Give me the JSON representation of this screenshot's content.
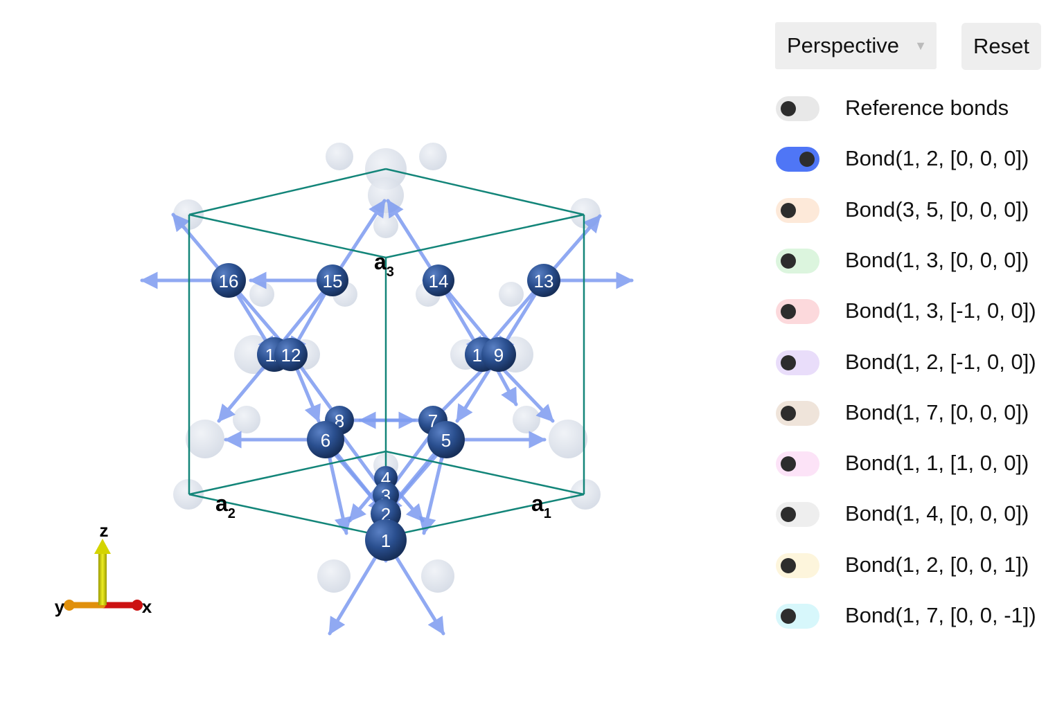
{
  "viewer": {
    "projection_options": [
      "Perspective"
    ],
    "projection_selected": "Perspective",
    "dropdown_icon": "triangle-down-icon",
    "reset_label": "Reset",
    "lattice_labels": [
      {
        "letter": "a",
        "sub": "1"
      },
      {
        "letter": "a",
        "sub": "2"
      },
      {
        "letter": "a",
        "sub": "3"
      }
    ],
    "axes": {
      "x": "x",
      "y": "y",
      "z": "z"
    },
    "axis_colors": {
      "x": "#cc1111",
      "y": "#e0900c",
      "z": "#d4d400"
    },
    "atom_color": "#2a4f8f",
    "ghost_atom_color": "#d5dbe5",
    "cell_color": "#138579",
    "arrow_color": "#7d9bf0",
    "atoms": [
      {
        "label": "1"
      },
      {
        "label": "2"
      },
      {
        "label": "3"
      },
      {
        "label": "4"
      },
      {
        "label": "5"
      },
      {
        "label": "6"
      },
      {
        "label": "7"
      },
      {
        "label": "8"
      },
      {
        "label": "9"
      },
      {
        "label": "10"
      },
      {
        "label": "11"
      },
      {
        "label": "12"
      },
      {
        "label": "13"
      },
      {
        "label": "14"
      },
      {
        "label": "15"
      },
      {
        "label": "16"
      }
    ]
  },
  "toggles": [
    {
      "label": "Reference bonds",
      "on": false,
      "color": "#e8e8e8"
    },
    {
      "label": "Bond(1, 2, [0, 0, 0])",
      "on": true,
      "color": "#4f76f6"
    },
    {
      "label": "Bond(3, 5, [0, 0, 0])",
      "on": false,
      "color": "#fde9d9"
    },
    {
      "label": "Bond(1, 3, [0, 0, 0])",
      "on": false,
      "color": "#dcf5de"
    },
    {
      "label": "Bond(1, 3, [-1, 0, 0])",
      "on": false,
      "color": "#fcd9dc"
    },
    {
      "label": "Bond(1, 2, [-1, 0, 0])",
      "on": false,
      "color": "#e9ddfa"
    },
    {
      "label": "Bond(1, 7, [0, 0, 0])",
      "on": false,
      "color": "#efe4da"
    },
    {
      "label": "Bond(1, 1, [1, 0, 0])",
      "on": false,
      "color": "#fce3f7"
    },
    {
      "label": "Bond(1, 4, [0, 0, 0])",
      "on": false,
      "color": "#eeeeee"
    },
    {
      "label": "Bond(1, 2, [0, 0, 1])",
      "on": false,
      "color": "#fdf5dc"
    },
    {
      "label": "Bond(1, 7, [0, 0, -1])",
      "on": false,
      "color": "#d7f7fb"
    }
  ]
}
